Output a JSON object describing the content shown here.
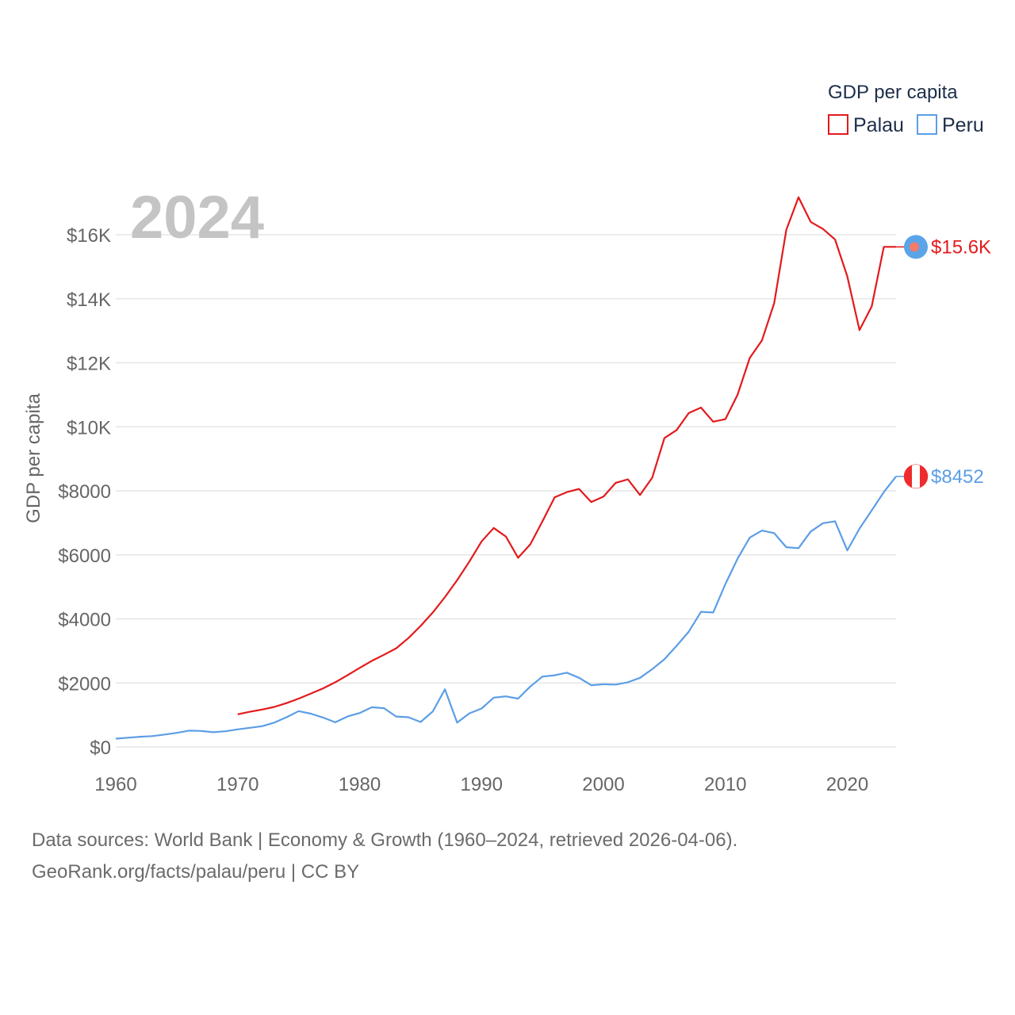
{
  "chart_data": {
    "type": "line",
    "year_label": "2024",
    "ylabel": "GDP per capita",
    "xlabel": "",
    "xlim": [
      1960,
      2024
    ],
    "ylim": [
      0,
      17500
    ],
    "x_ticks": [
      1960,
      1970,
      1980,
      1990,
      2000,
      2010,
      2020
    ],
    "x_tick_labels": [
      "1960",
      "1970",
      "1980",
      "1990",
      "2000",
      "2010",
      "2020"
    ],
    "y_ticks": [
      0,
      2000,
      4000,
      6000,
      8000,
      10000,
      12000,
      14000,
      16000
    ],
    "y_tick_labels": [
      "$0",
      "$2000",
      "$4000",
      "$6000",
      "$8000",
      "$10K",
      "$12K",
      "$14K",
      "$16K"
    ],
    "legend": {
      "title": "GDP per capita",
      "placement": "top-right",
      "entries": [
        "Palau",
        "Peru"
      ]
    },
    "series": [
      {
        "name": "Palau",
        "color": "#e31a1c",
        "end_label": "$15.6K",
        "x": [
          1970,
          1971,
          1972,
          1973,
          1974,
          1975,
          1976,
          1977,
          1978,
          1979,
          1980,
          1981,
          1982,
          1983,
          1984,
          1985,
          1986,
          1987,
          1988,
          1989,
          1990,
          1991,
          1992,
          1993,
          1994,
          1995,
          1996,
          1997,
          1998,
          1999,
          2000,
          2001,
          2002,
          2003,
          2004,
          2005,
          2006,
          2007,
          2008,
          2009,
          2010,
          2011,
          2012,
          2013,
          2014,
          2015,
          2016,
          2017,
          2018,
          2019,
          2020,
          2021,
          2022,
          2023,
          2024
        ],
        "values": [
          1020,
          1100,
          1170,
          1250,
          1370,
          1510,
          1670,
          1830,
          2020,
          2240,
          2470,
          2690,
          2880,
          3080,
          3400,
          3780,
          4200,
          4680,
          5210,
          5790,
          6420,
          6840,
          6570,
          5910,
          6330,
          7050,
          7800,
          7960,
          8060,
          7650,
          7820,
          8250,
          8360,
          7870,
          8410,
          9650,
          9900,
          10430,
          10600,
          10160,
          10240,
          11000,
          12150,
          12700,
          13860,
          16150,
          17170,
          16400,
          16180,
          15850,
          14700,
          13020,
          13760,
          15620,
          15620
        ]
      },
      {
        "name": "Peru",
        "color": "#5c9ee6",
        "end_label": "$8452",
        "x": [
          1960,
          1961,
          1962,
          1963,
          1964,
          1965,
          1966,
          1967,
          1968,
          1969,
          1970,
          1971,
          1972,
          1973,
          1974,
          1975,
          1976,
          1977,
          1978,
          1979,
          1980,
          1981,
          1982,
          1983,
          1984,
          1985,
          1986,
          1987,
          1988,
          1989,
          1990,
          1991,
          1992,
          1993,
          1994,
          1995,
          1996,
          1997,
          1998,
          1999,
          2000,
          2001,
          2002,
          2003,
          2004,
          2005,
          2006,
          2007,
          2008,
          2009,
          2010,
          2011,
          2012,
          2013,
          2014,
          2015,
          2016,
          2017,
          2018,
          2019,
          2020,
          2021,
          2022,
          2023,
          2024
        ],
        "values": [
          260,
          290,
          320,
          340,
          390,
          440,
          510,
          500,
          460,
          490,
          550,
          600,
          650,
          760,
          930,
          1120,
          1040,
          920,
          770,
          950,
          1060,
          1240,
          1210,
          950,
          930,
          780,
          1110,
          1800,
          760,
          1050,
          1200,
          1540,
          1580,
          1510,
          1890,
          2200,
          2240,
          2320,
          2160,
          1930,
          1960,
          1950,
          2020,
          2160,
          2430,
          2740,
          3160,
          3600,
          4220,
          4200,
          5090,
          5880,
          6540,
          6760,
          6680,
          6240,
          6210,
          6730,
          6990,
          7050,
          6140,
          6820,
          7390,
          7960,
          8452
        ]
      }
    ]
  },
  "source": {
    "line1": "Data sources: World Bank | Economy & Growth (1960–2024, retrieved 2026-04-06).",
    "line2": "GeoRank.org/facts/palau/peru | CC BY"
  }
}
